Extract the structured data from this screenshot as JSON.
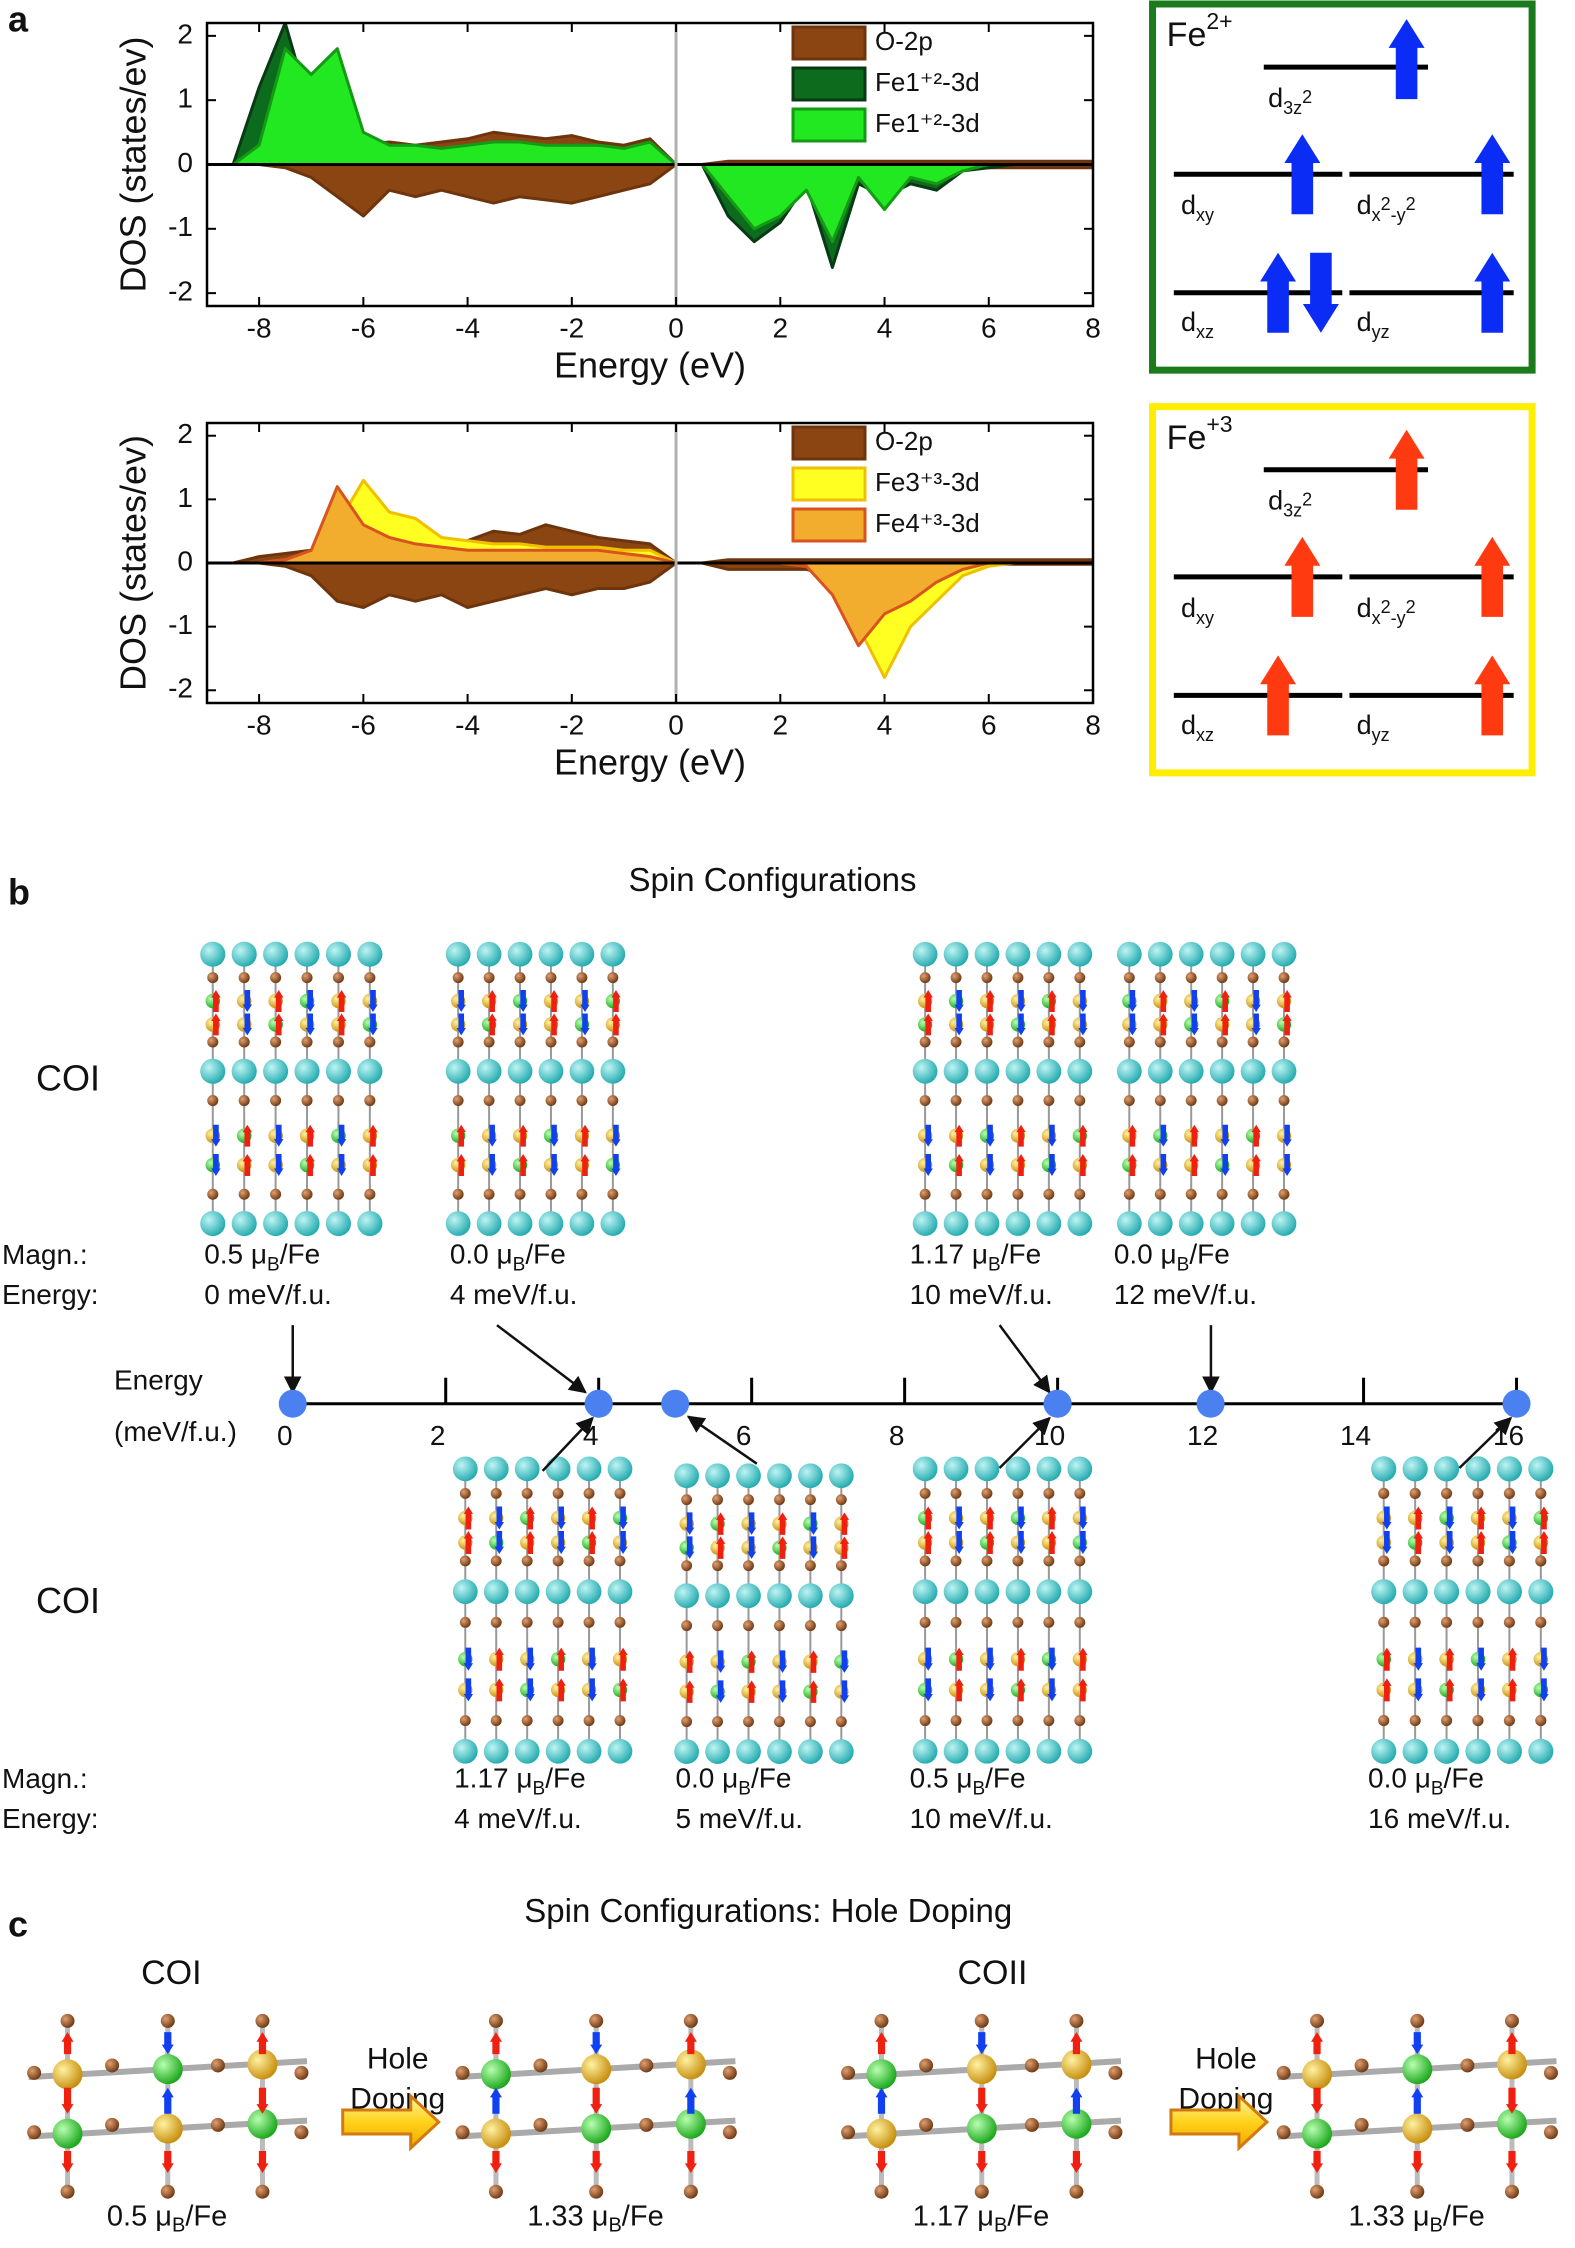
{
  "panel_labels": [
    "a",
    "b",
    "c"
  ],
  "chart_data": [
    {
      "type": "area",
      "xlabel": "Energy (eV)",
      "ylabel": "DOS (states/ev)",
      "xlim": [
        -9,
        8
      ],
      "xticks": [
        -8,
        -6,
        -4,
        -2,
        0,
        2,
        4,
        6,
        8
      ],
      "ylim": [
        -2.2,
        2.2
      ],
      "yticks": [
        -2,
        -1,
        0,
        1,
        2
      ],
      "legend": "upper right",
      "x": [
        -9,
        -8.5,
        -8,
        -7.5,
        -7,
        -6.5,
        -6,
        -5.5,
        -5,
        -4.5,
        -4,
        -3.5,
        -3,
        -2.5,
        -2,
        -1.5,
        -1,
        -0.5,
        0,
        0.5,
        1,
        1.5,
        2,
        2.5,
        3,
        3.5,
        4,
        4.5,
        5,
        5.5,
        6,
        6.5,
        7,
        7.5,
        8
      ],
      "series": [
        {
          "name": "O-2p",
          "color": "#8b4513",
          "edge": "#6e350d",
          "up": [
            0,
            0,
            0,
            0.02,
            0.1,
            0.2,
            0.3,
            0.35,
            0.3,
            0.35,
            0.4,
            0.5,
            0.45,
            0.4,
            0.45,
            0.35,
            0.3,
            0.4,
            0,
            0,
            0.05,
            0.05,
            0.05,
            0.05,
            0.05,
            0.05,
            0.05,
            0.05,
            0.05,
            0.05,
            0.05,
            0.05,
            0.05,
            0.05,
            0.05
          ],
          "down": [
            0,
            0,
            0,
            -0.05,
            -0.2,
            -0.5,
            -0.8,
            -0.4,
            -0.5,
            -0.4,
            -0.5,
            -0.6,
            -0.5,
            -0.55,
            -0.6,
            -0.5,
            -0.4,
            -0.3,
            0,
            0,
            -0.05,
            -0.05,
            -0.05,
            -0.05,
            -0.05,
            -0.05,
            -0.05,
            -0.05,
            -0.05,
            -0.05,
            -0.05,
            -0.05,
            -0.05,
            -0.05,
            -0.05
          ]
        },
        {
          "name": "Fe1⁺²-3d",
          "color": "#0c6b1c",
          "edge": "#0a3a14",
          "up": [
            0,
            0,
            1.2,
            2.2,
            0.8,
            0.6,
            0.2,
            0.3,
            0.25,
            0.2,
            0.25,
            0.3,
            0.3,
            0.25,
            0.3,
            0.25,
            0.2,
            0.1,
            0,
            0,
            0,
            0,
            0,
            0,
            0,
            0,
            0,
            0,
            0,
            0,
            0,
            0,
            0,
            0,
            0
          ],
          "down": [
            0,
            0,
            0,
            0,
            0,
            0,
            0,
            0,
            0,
            0,
            0,
            0,
            0,
            0,
            0,
            0,
            0,
            0,
            0,
            0,
            -0.8,
            -1.2,
            -0.9,
            -0.3,
            -1.6,
            -0.3,
            -0.5,
            -0.3,
            -0.4,
            -0.1,
            -0.05,
            0,
            0,
            0,
            0
          ]
        },
        {
          "name": "Fe1⁺²-3d",
          "color": "#22e822",
          "edge": "#159a15",
          "up": [
            0,
            0,
            0.3,
            1.8,
            1.4,
            1.8,
            0.5,
            0.3,
            0.3,
            0.25,
            0.3,
            0.35,
            0.35,
            0.3,
            0.3,
            0.3,
            0.25,
            0.35,
            0,
            0,
            0,
            0,
            0,
            0,
            0,
            0,
            0,
            0,
            0,
            0,
            0,
            0,
            0,
            0,
            0
          ],
          "down": [
            0,
            0,
            0,
            0,
            0,
            0,
            0,
            0,
            0,
            0,
            0,
            0,
            0,
            0,
            0,
            0,
            0,
            0,
            0,
            0,
            -0.5,
            -1.0,
            -0.8,
            -0.4,
            -1.2,
            -0.2,
            -0.7,
            -0.2,
            -0.3,
            -0.1,
            0,
            0,
            0,
            0,
            0
          ]
        }
      ]
    },
    {
      "type": "area",
      "xlabel": "Energy (eV)",
      "ylabel": "DOS (states/ev)",
      "xlim": [
        -9,
        8
      ],
      "xticks": [
        -8,
        -6,
        -4,
        -2,
        0,
        2,
        4,
        6,
        8
      ],
      "ylim": [
        -2.2,
        2.2
      ],
      "yticks": [
        -2,
        -1,
        0,
        1,
        2
      ],
      "legend": "upper right",
      "x": [
        -9,
        -8.5,
        -8,
        -7.5,
        -7,
        -6.5,
        -6,
        -5.5,
        -5,
        -4.5,
        -4,
        -3.5,
        -3,
        -2.5,
        -2,
        -1.5,
        -1,
        -0.5,
        0,
        0.5,
        1,
        1.5,
        2,
        2.5,
        3,
        3.5,
        4,
        4.5,
        5,
        5.5,
        6,
        6.5,
        7,
        7.5,
        8
      ],
      "series": [
        {
          "name": "O-2p",
          "color": "#8b4513",
          "edge": "#6e350d",
          "up": [
            0,
            0,
            0.1,
            0.15,
            0.2,
            0.3,
            0.3,
            0.35,
            0.35,
            0.3,
            0.35,
            0.5,
            0.45,
            0.6,
            0.5,
            0.4,
            0.35,
            0.3,
            0,
            0,
            0.05,
            0.05,
            0.05,
            0.05,
            0.05,
            0.05,
            0.05,
            0.05,
            0.05,
            0.05,
            0.05,
            0.05,
            0.05,
            0.05,
            0.05
          ],
          "down": [
            0,
            0,
            0,
            -0.05,
            -0.2,
            -0.6,
            -0.7,
            -0.5,
            -0.6,
            -0.5,
            -0.7,
            -0.6,
            -0.5,
            -0.4,
            -0.5,
            -0.4,
            -0.4,
            -0.3,
            0,
            0,
            -0.1,
            -0.1,
            -0.1,
            -0.1,
            -0.2,
            -0.3,
            -0.3,
            -0.2,
            -0.1,
            -0.05,
            -0.02,
            -0.02,
            -0.02,
            -0.02,
            -0.02
          ]
        },
        {
          "name": "Fe3⁺³-3d",
          "color": "#ffff22",
          "edge": "#f0c000",
          "up": [
            0,
            0,
            0,
            0.05,
            0.1,
            0.6,
            1.3,
            0.8,
            0.7,
            0.4,
            0.35,
            0.3,
            0.3,
            0.25,
            0.25,
            0.25,
            0.2,
            0.2,
            0,
            0,
            0,
            0,
            0,
            0,
            0,
            0,
            0,
            0,
            0,
            0,
            0,
            0,
            0,
            0,
            0
          ],
          "down": [
            0,
            0,
            0,
            0,
            0,
            0,
            0,
            0,
            0,
            0,
            0,
            0,
            0,
            0,
            0,
            0,
            0,
            0,
            0,
            0,
            0,
            0,
            0,
            -0.05,
            -0.4,
            -1.0,
            -1.8,
            -1.0,
            -0.6,
            -0.2,
            -0.05,
            0,
            0,
            0,
            0
          ]
        },
        {
          "name": "Fe4⁺³-3d",
          "color": "#f2ad2e",
          "edge": "#d9531e",
          "up": [
            0,
            0,
            0,
            0.05,
            0.2,
            1.2,
            0.6,
            0.4,
            0.3,
            0.25,
            0.2,
            0.2,
            0.2,
            0.2,
            0.2,
            0.2,
            0.15,
            0.1,
            0,
            0,
            0,
            0,
            0,
            0,
            0,
            0,
            0,
            0,
            0,
            0,
            0,
            0,
            0,
            0,
            0
          ],
          "down": [
            0,
            0,
            0,
            0,
            0,
            0,
            0,
            0,
            0,
            0,
            0,
            0,
            0,
            0,
            0,
            0,
            0,
            0,
            0,
            0,
            0,
            0,
            0,
            -0.05,
            -0.5,
            -1.3,
            -0.8,
            -0.6,
            -0.3,
            -0.1,
            0,
            0,
            0,
            0,
            0
          ]
        }
      ]
    }
  ],
  "orbital_diagrams": [
    {
      "title": [
        {
          "t": "Fe"
        },
        {
          "t": "2+",
          "s": "sup"
        }
      ],
      "border": "#1b7a1b",
      "arrow_color": "#0a2cf5",
      "levels": [
        {
          "label": [
            {
              "t": "d"
            },
            {
              "t": "3z",
              "s": "sub"
            },
            {
              "t": "2",
              "s": "subsup"
            }
          ],
          "spins": [
            "up"
          ]
        },
        {
          "label": [
            {
              "t": "d"
            },
            {
              "t": "xy",
              "s": "sub"
            }
          ],
          "spins": [
            "up"
          ]
        },
        {
          "label": [
            {
              "t": "d"
            },
            {
              "t": "x",
              "s": "sub"
            },
            {
              "t": "2",
              "s": "subsup"
            },
            {
              "t": "-y",
              "s": "sub"
            },
            {
              "t": "2",
              "s": "subsup"
            }
          ],
          "spins": [
            "up"
          ]
        },
        {
          "label": [
            {
              "t": "d"
            },
            {
              "t": "xz",
              "s": "sub"
            }
          ],
          "spins": [
            "up",
            "down"
          ]
        },
        {
          "label": [
            {
              "t": "d"
            },
            {
              "t": "yz",
              "s": "sub"
            }
          ],
          "spins": [
            "up"
          ]
        }
      ]
    },
    {
      "title": [
        {
          "t": "Fe"
        },
        {
          "t": "+3",
          "s": "sup"
        }
      ],
      "border": "#ffee00",
      "arrow_color": "#ff3a10",
      "levels": [
        {
          "label": [
            {
              "t": "d"
            },
            {
              "t": "3z",
              "s": "sub"
            },
            {
              "t": "2",
              "s": "subsup"
            }
          ],
          "spins": [
            "up"
          ]
        },
        {
          "label": [
            {
              "t": "d"
            },
            {
              "t": "xy",
              "s": "sub"
            }
          ],
          "spins": [
            "up"
          ]
        },
        {
          "label": [
            {
              "t": "d"
            },
            {
              "t": "x",
              "s": "sub"
            },
            {
              "t": "2",
              "s": "subsup"
            },
            {
              "t": "-y",
              "s": "sub"
            },
            {
              "t": "2",
              "s": "subsup"
            }
          ],
          "spins": [
            "up"
          ]
        },
        {
          "label": [
            {
              "t": "d"
            },
            {
              "t": "xz",
              "s": "sub"
            }
          ],
          "spins": [
            "up"
          ]
        },
        {
          "label": [
            {
              "t": "d"
            },
            {
              "t": "yz",
              "s": "sub"
            }
          ],
          "spins": [
            "up"
          ]
        }
      ]
    }
  ],
  "spin_configurations": {
    "title": "Spin Configurations",
    "row_labels": [
      "COI",
      "COI"
    ],
    "magn_label": "Magn.:",
    "energy_label": "Energy:",
    "axis": {
      "label": [
        "Energy",
        "(meV/f.u.)"
      ],
      "xlim": [
        0,
        16
      ],
      "xticks": [
        0,
        2,
        4,
        6,
        8,
        10,
        12,
        14,
        16
      ],
      "point_color": "#4a80f0"
    },
    "configs": [
      {
        "row": 0,
        "energy": 0,
        "energy_text": "0 meV/f.u.",
        "magn": {
          "pre": "0.5 μ",
          "sub": "B",
          "post": "/Fe"
        }
      },
      {
        "row": 0,
        "energy": 4,
        "energy_text": "4 meV/f.u.",
        "magn": {
          "pre": "0.0 μ",
          "sub": "B",
          "post": "/Fe"
        }
      },
      {
        "row": 0,
        "energy": 10,
        "energy_text": "10 meV/f.u.",
        "magn": {
          "pre": "1.17 μ",
          "sub": "B",
          "post": "/Fe"
        }
      },
      {
        "row": 0,
        "energy": 12,
        "energy_text": "12 meV/f.u.",
        "magn": {
          "pre": "0.0 μ",
          "sub": "B",
          "post": "/Fe"
        }
      },
      {
        "row": 1,
        "energy": 4,
        "energy_text": "4 meV/f.u.",
        "magn": {
          "pre": "1.17 μ",
          "sub": "B",
          "post": "/Fe"
        }
      },
      {
        "row": 1,
        "energy": 5,
        "energy_text": "5 meV/f.u.",
        "magn": {
          "pre": "0.0 μ",
          "sub": "B",
          "post": "/Fe"
        }
      },
      {
        "row": 1,
        "energy": 10,
        "energy_text": "10 meV/f.u.",
        "magn": {
          "pre": "0.5 μ",
          "sub": "B",
          "post": "/Fe"
        }
      },
      {
        "row": 1,
        "energy": 16,
        "energy_text": "16 meV/f.u.",
        "magn": {
          "pre": "0.0 μ",
          "sub": "B",
          "post": "/Fe"
        }
      }
    ]
  },
  "hole_doping": {
    "title": "Spin Configurations: Hole Doping",
    "groups": [
      {
        "name": "COI",
        "arrow_label": [
          "Hole",
          "Doping"
        ],
        "magn": [
          {
            "pre": "0.5 μ",
            "sub": "B",
            "post": "/Fe"
          },
          {
            "pre": "1.33 μ",
            "sub": "B",
            "post": "/Fe"
          }
        ]
      },
      {
        "name": "COII",
        "arrow_label": [
          "Hole",
          "Doping"
        ],
        "magn": [
          {
            "pre": "1.17 μ",
            "sub": "B",
            "post": "/Fe"
          },
          {
            "pre": "1.33 μ",
            "sub": "B",
            "post": "/Fe"
          }
        ]
      }
    ]
  }
}
